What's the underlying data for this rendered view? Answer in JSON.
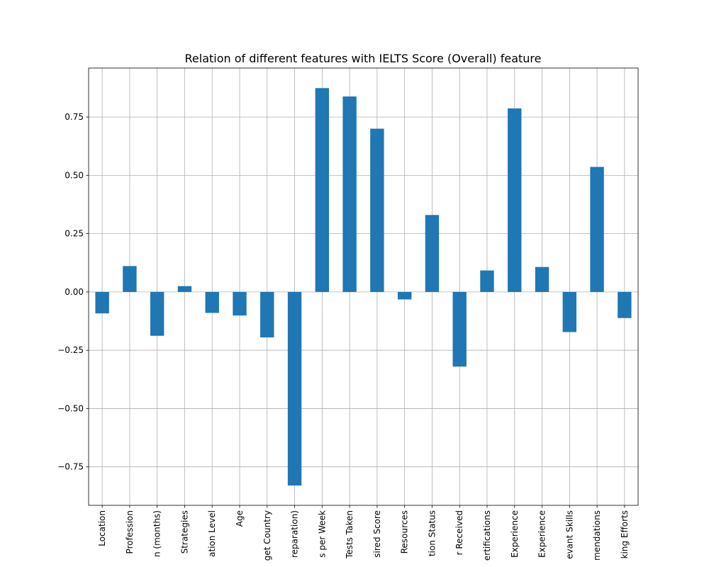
{
  "chart_data": {
    "type": "bar",
    "title": "Relation of different features with IELTS Score (Overall) feature",
    "xlabel": "",
    "ylabel": "",
    "categories": [
      "Location",
      "Profession",
      "n (months)",
      "Strategies",
      "ation Level",
      "Age",
      "get Country",
      "reparation)",
      "s per Week",
      "Tests Taken",
      "sired Score",
      "Resources",
      "tion Status",
      "r Received",
      "ertifications",
      "Experience",
      "Experience",
      "evant Skills",
      "mendations",
      "king Efforts"
    ],
    "values": [
      -0.092,
      0.111,
      -0.188,
      0.025,
      -0.09,
      -0.101,
      -0.195,
      -0.83,
      0.874,
      0.838,
      0.7,
      -0.032,
      0.33,
      -0.32,
      0.092,
      0.787,
      0.107,
      -0.172,
      0.536,
      -0.112
    ],
    "yticks": [
      -0.75,
      -0.5,
      -0.25,
      0.0,
      0.25,
      0.5,
      0.75
    ],
    "ytick_labels": [
      "−0.75",
      "−0.50",
      "−0.25",
      "0.00",
      "0.25",
      "0.50",
      "0.75"
    ],
    "ylim": [
      -0.915,
      0.96
    ],
    "grid": true,
    "legend": "none",
    "bar_color": "#1f77b4"
  }
}
